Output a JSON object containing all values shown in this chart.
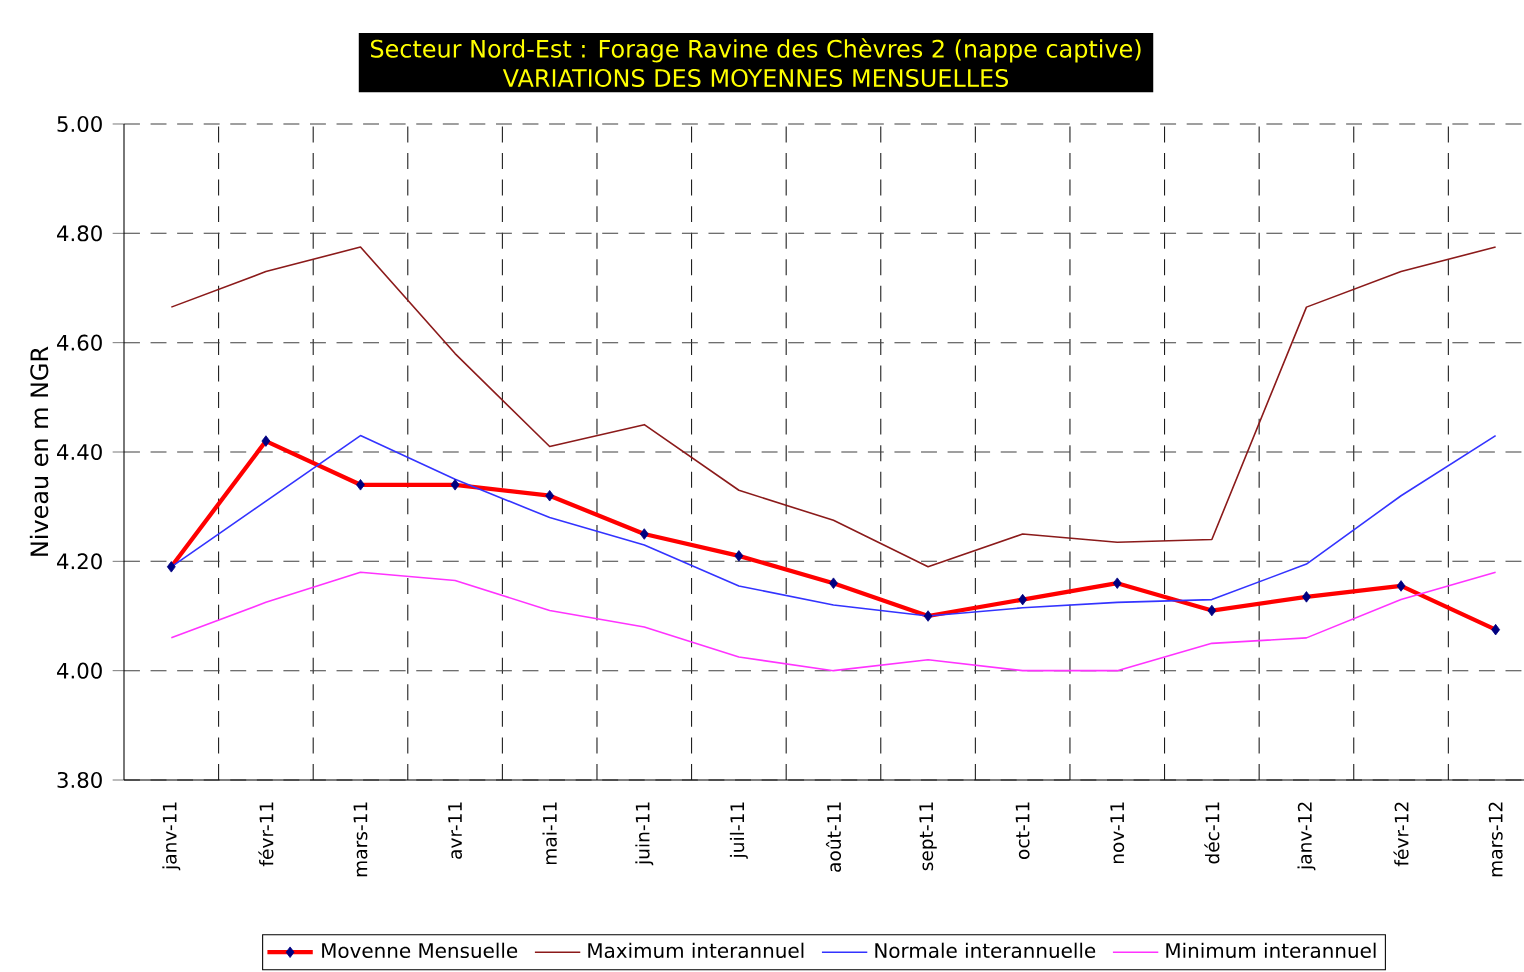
{
  "chart_data": {
    "type": "line",
    "title": "Secteur Nord-Est : Forage Ravine des Chèvres 2 (nappe captive)",
    "subtitle": "VARIATIONS DES MOYENNES MENSUELLES",
    "ylabel": "Niveau en m NGR",
    "categories": [
      "janv-11",
      "févr-11",
      "mars-11",
      "avr-11",
      "mai-11",
      "juin-11",
      "juil-11",
      "août-11",
      "sept-11",
      "oct-11",
      "nov-11",
      "déc-11",
      "janv-12",
      "févr-12",
      "mars-12"
    ],
    "series": [
      {
        "name": "Movenne  Mensuelle",
        "color": "#ff0000",
        "marker": "diamond",
        "values": [
          4.19,
          4.42,
          4.34,
          4.34,
          4.32,
          4.25,
          4.21,
          4.16,
          4.1,
          4.13,
          4.16,
          4.11,
          4.135,
          4.155,
          4.075
        ]
      },
      {
        "name": "Maximum interannuel",
        "color": "#8b1a1a",
        "values": [
          4.665,
          4.73,
          4.775,
          4.58,
          4.41,
          4.45,
          4.33,
          4.275,
          4.19,
          4.25,
          4.235,
          4.24,
          4.665,
          4.73,
          4.775
        ]
      },
      {
        "name": "Normale  interannuelle",
        "color": "#3333ff",
        "values": [
          4.19,
          4.31,
          4.43,
          4.35,
          4.28,
          4.23,
          4.155,
          4.12,
          4.1,
          4.115,
          4.125,
          4.13,
          4.195,
          4.32,
          4.43
        ]
      },
      {
        "name": "Minimum interannuel",
        "color": "#ff33ff",
        "values": [
          4.06,
          4.125,
          4.18,
          4.165,
          4.11,
          4.08,
          4.025,
          4.0,
          4.02,
          4.0,
          4.0,
          4.05,
          4.06,
          4.13,
          4.18
        ]
      }
    ],
    "ylim": [
      3.8,
      5.0
    ],
    "yticks": [
      {
        "value": 3.8,
        "label": "3.80"
      },
      {
        "value": 4.0,
        "label": "4.00"
      },
      {
        "value": 4.2,
        "label": "4.20"
      },
      {
        "value": 4.4,
        "label": "4.40"
      },
      {
        "value": 4.6,
        "label": "4.60"
      },
      {
        "value": 4.8,
        "label": "4.80"
      },
      {
        "value": 5.0,
        "label": "5.00"
      }
    ],
    "grid": true,
    "legend": "bottom",
    "line_style": "solid"
  }
}
